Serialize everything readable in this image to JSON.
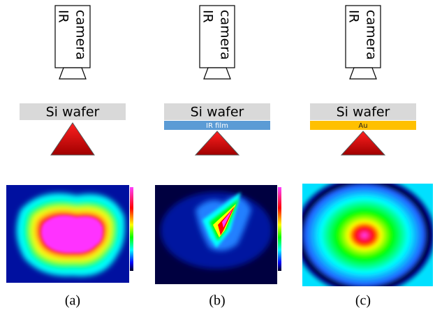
{
  "panels": [
    {
      "camera": [
        "IR",
        "camera"
      ],
      "wafer": "Si wafer",
      "caption": "(a)"
    },
    {
      "camera": [
        "IR",
        "camera"
      ],
      "wafer": "Si wafer",
      "film": "IR film",
      "caption": "(b)"
    },
    {
      "camera": [
        "IR",
        "camera"
      ],
      "wafer": "Si wafer",
      "film": "Au",
      "caption": "(c)"
    }
  ]
}
